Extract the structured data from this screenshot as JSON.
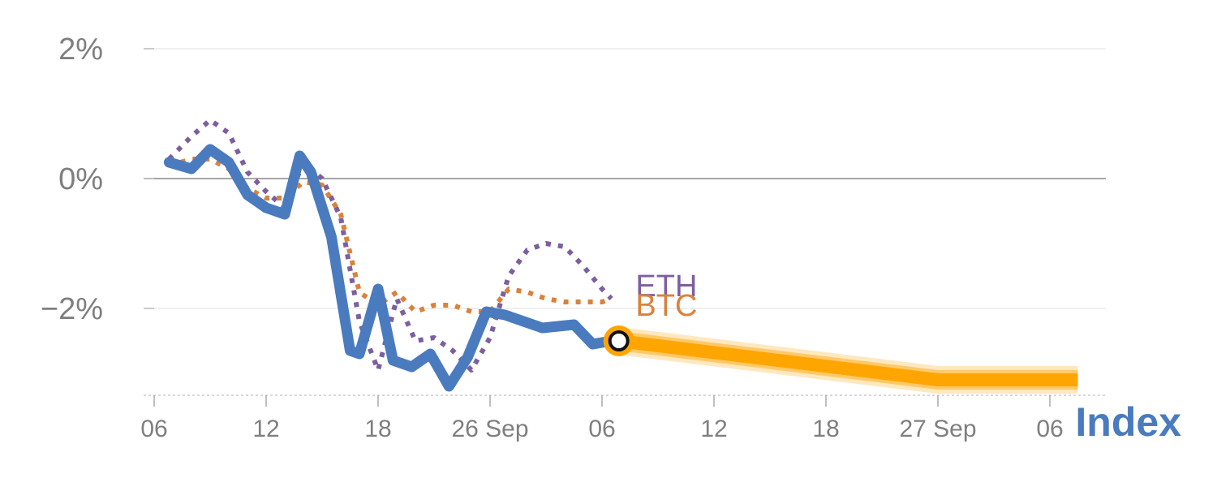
{
  "chart_data": {
    "type": "line",
    "title": "",
    "xlabel": "",
    "ylabel": "",
    "ylim": [
      -3.3,
      2.0
    ],
    "y_ticks": [
      {
        "value": 2,
        "label": "2%"
      },
      {
        "value": 0,
        "label": "0%"
      },
      {
        "value": -2,
        "label": "−2%"
      }
    ],
    "x_ticks": [
      {
        "value": 0,
        "label": "06"
      },
      {
        "value": 6,
        "label": "12"
      },
      {
        "value": 12,
        "label": "18"
      },
      {
        "value": 18,
        "label": "26 Sep"
      },
      {
        "value": 24,
        "label": "06"
      },
      {
        "value": 30,
        "label": "12"
      },
      {
        "value": 36,
        "label": "18"
      },
      {
        "value": 42,
        "label": "27 Sep"
      },
      {
        "value": 48,
        "label": "06"
      }
    ],
    "x_range": [
      0,
      51.5
    ],
    "axis_label": "Index",
    "colors": {
      "index": "#4a7bbf",
      "eth": "#7d5fa0",
      "btc": "#d9823b",
      "forecast": "#ffa500",
      "marker_ring": "#ffa500",
      "marker_fill": "#ffffff",
      "zero_line": "#888888",
      "grid": "#e6e6e6",
      "axis": "#cccccc"
    },
    "series": [
      {
        "name": "Index",
        "style": "solid",
        "x": [
          0.8,
          2,
          3,
          4,
          5,
          6,
          7,
          7.8,
          8.4,
          9.5,
          10.5,
          11,
          12,
          12.8,
          13.8,
          14.8,
          15.8,
          16.8,
          17.8,
          18.8,
          19.8,
          20.8,
          22.5,
          23.5,
          24.5
        ],
        "y": [
          0.25,
          0.15,
          0.45,
          0.25,
          -0.25,
          -0.45,
          -0.55,
          0.35,
          0.1,
          -0.9,
          -2.65,
          -2.7,
          -1.7,
          -2.8,
          -2.9,
          -2.7,
          -3.2,
          -2.75,
          -2.05,
          -2.1,
          -2.2,
          -2.3,
          -2.25,
          -2.55,
          -2.5
        ]
      },
      {
        "name": "ETH",
        "style": "dotted",
        "x": [
          0.8,
          2,
          3,
          4,
          5,
          6,
          7,
          8,
          9,
          10,
          11,
          12,
          13,
          14,
          15,
          16,
          17,
          18,
          19,
          20,
          21,
          22,
          23,
          24,
          24.5
        ],
        "y": [
          0.3,
          0.65,
          0.9,
          0.7,
          0.1,
          -0.2,
          -0.45,
          0.25,
          0.0,
          -0.6,
          -2.2,
          -2.95,
          -1.85,
          -2.5,
          -2.45,
          -2.65,
          -2.95,
          -2.45,
          -1.5,
          -1.1,
          -1.0,
          -1.05,
          -1.35,
          -1.7,
          -1.85
        ]
      },
      {
        "name": "BTC",
        "style": "dotted",
        "x": [
          0.8,
          2,
          3,
          4,
          5,
          6,
          7,
          8,
          9,
          10,
          11,
          12,
          13,
          14,
          15,
          16,
          17,
          18,
          19,
          20,
          21,
          22,
          23,
          24,
          24.5
        ],
        "y": [
          0.2,
          0.3,
          0.3,
          0.15,
          -0.15,
          -0.3,
          -0.3,
          -0.05,
          -0.1,
          -0.55,
          -1.75,
          -1.95,
          -1.75,
          -2.05,
          -1.95,
          -1.95,
          -2.05,
          -2.05,
          -1.7,
          -1.75,
          -1.85,
          -1.9,
          -1.9,
          -1.9,
          -1.85
        ]
      },
      {
        "name": "Forecast",
        "style": "band",
        "x": [
          24.9,
          42,
          49.5
        ],
        "y": [
          -2.5,
          -3.1,
          -3.1
        ]
      }
    ],
    "current_marker": {
      "x": 24.9,
      "y": -2.5
    },
    "series_labels": [
      {
        "name": "ETH",
        "x": 25.8,
        "y": -1.65
      },
      {
        "name": "BTC",
        "x": 25.8,
        "y": -1.95
      }
    ]
  }
}
